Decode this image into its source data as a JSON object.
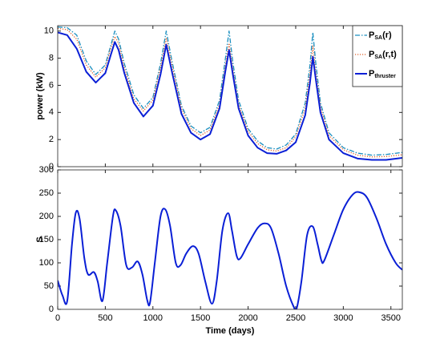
{
  "chart_data": [
    {
      "type": "line",
      "ylabel": "power (kW)",
      "x": [
        0,
        100,
        200,
        300,
        400,
        500,
        560,
        600,
        640,
        700,
        800,
        900,
        1000,
        1080,
        1140,
        1200,
        1300,
        1400,
        1500,
        1600,
        1700,
        1760,
        1800,
        1840,
        1900,
        2000,
        2100,
        2200,
        2300,
        2400,
        2500,
        2600,
        2650,
        2680,
        2710,
        2760,
        2850,
        3000,
        3150,
        3300,
        3450,
        3620
      ],
      "series": [
        {
          "name": "P",
          "subscript": "SA",
          "suffix": "(r)",
          "color": "#1a8fc0",
          "dash": "6 2 1.5 2",
          "width": 1.3,
          "values": [
            10.3,
            10.25,
            9.7,
            7.8,
            6.8,
            7.5,
            9.0,
            10.0,
            9.4,
            7.6,
            5.3,
            4.3,
            5.1,
            7.6,
            10.0,
            7.8,
            4.5,
            3.0,
            2.5,
            2.9,
            4.9,
            7.9,
            10.0,
            7.7,
            4.9,
            2.8,
            1.9,
            1.4,
            1.3,
            1.6,
            2.4,
            4.7,
            7.5,
            9.9,
            7.7,
            4.7,
            2.5,
            1.4,
            1.0,
            0.85,
            0.9,
            1.05
          ]
        },
        {
          "name": "P",
          "subscript": "SA",
          "suffix": "(r,t)",
          "color": "#e0602a",
          "dash": "1.2 1.8",
          "width": 1.3,
          "values": [
            10.2,
            10.1,
            9.4,
            7.5,
            6.6,
            7.3,
            8.8,
            9.6,
            9.1,
            7.3,
            5.0,
            4.1,
            4.9,
            7.3,
            9.5,
            7.5,
            4.3,
            2.8,
            2.3,
            2.7,
            4.6,
            7.4,
            9.1,
            7.2,
            4.6,
            2.6,
            1.7,
            1.25,
            1.15,
            1.4,
            2.2,
            4.3,
            6.9,
            8.9,
            7.0,
            4.4,
            2.3,
            1.25,
            0.85,
            0.72,
            0.75,
            0.88
          ]
        },
        {
          "name": "P",
          "subscript": "thruster",
          "suffix": "",
          "color": "#0a1fd6",
          "dash": "",
          "width": 2,
          "values": [
            9.9,
            9.7,
            8.7,
            7.0,
            6.2,
            6.9,
            8.3,
            9.2,
            8.6,
            6.9,
            4.7,
            3.7,
            4.5,
            6.8,
            9.0,
            7.0,
            3.9,
            2.5,
            2.0,
            2.4,
            4.3,
            7.0,
            8.6,
            6.8,
            4.3,
            2.3,
            1.4,
            1.0,
            0.95,
            1.2,
            1.8,
            3.8,
            6.2,
            8.1,
            6.5,
            4.0,
            2.0,
            1.0,
            0.6,
            0.5,
            0.5,
            0.65
          ]
        }
      ],
      "xlim": [
        0,
        3620
      ],
      "xticks": [
        0,
        500,
        1000,
        1500,
        2000,
        2500,
        3000,
        3500
      ],
      "ylim": [
        0,
        10.4
      ],
      "yticks": [
        0,
        2,
        4,
        6,
        8,
        10
      ],
      "legend": "upper right"
    },
    {
      "type": "line",
      "ylabel": "S",
      "xlabel": "Time (days)",
      "x": [
        0,
        50,
        100,
        150,
        190,
        230,
        280,
        320,
        380,
        420,
        470,
        520,
        580,
        610,
        660,
        720,
        780,
        840,
        890,
        940,
        970,
        1020,
        1080,
        1130,
        1180,
        1240,
        1290,
        1350,
        1420,
        1480,
        1550,
        1620,
        1670,
        1730,
        1790,
        1830,
        1880,
        1920,
        2000,
        2100,
        2170,
        2240,
        2320,
        2400,
        2480,
        2510,
        2560,
        2620,
        2680,
        2730,
        2770,
        2800,
        2900,
        3000,
        3100,
        3170,
        3250,
        3350,
        3450,
        3550,
        3620
      ],
      "series": [
        {
          "name": "S",
          "color": "#0a1fd6",
          "width": 2,
          "values": [
            62,
            30,
            18,
            140,
            208,
            195,
            110,
            75,
            80,
            60,
            18,
            100,
            200,
            213,
            180,
            95,
            90,
            103,
            75,
            20,
            15,
            100,
            200,
            215,
            180,
            100,
            95,
            120,
            136,
            120,
            60,
            12,
            60,
            170,
            207,
            170,
            115,
            110,
            140,
            175,
            185,
            175,
            120,
            50,
            5,
            2,
            60,
            160,
            178,
            140,
            105,
            105,
            160,
            215,
            247,
            252,
            240,
            195,
            140,
            100,
            85
          ]
        }
      ],
      "xlim": [
        0,
        3620
      ],
      "xticks": [
        0,
        500,
        1000,
        1500,
        2000,
        2500,
        3000,
        3500
      ],
      "ylim": [
        0,
        300
      ],
      "yticks": [
        0,
        50,
        100,
        150,
        200,
        250,
        300
      ]
    }
  ]
}
